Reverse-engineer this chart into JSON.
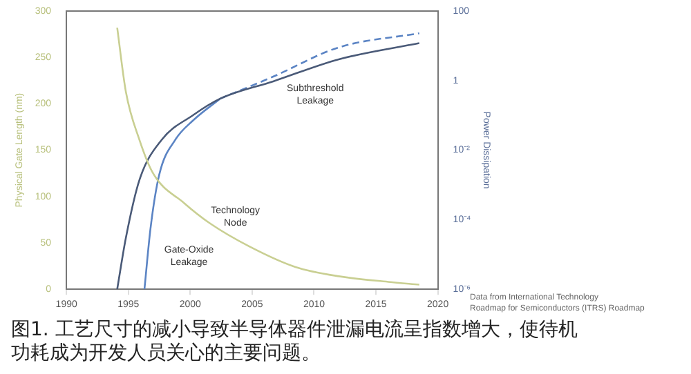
{
  "chart_data": {
    "type": "line",
    "ylabel": "Physical Gate Length (nm)",
    "y2label": "Power Dissipation",
    "xlim": [
      1990,
      2020
    ],
    "xticks": [
      1990,
      1995,
      2000,
      2005,
      2010,
      2015,
      2020
    ],
    "ylim": [
      0,
      300
    ],
    "yticks": [
      0,
      50,
      100,
      150,
      200,
      250,
      300
    ],
    "y2lim": [
      1e-06,
      100
    ],
    "y2ticks": [
      {
        "value": 1e-06,
        "label": "10⁻⁶"
      },
      {
        "value": 0.0001,
        "label": "10⁻⁴"
      },
      {
        "value": 0.01,
        "label": "10⁻²"
      },
      1,
      100
    ],
    "log": "y2",
    "grid": false,
    "legend": false,
    "marker": "none",
    "series": [
      {
        "color": "#c9cf92",
        "line_style": "solid",
        "x": [
          1994.1,
          1994.8,
          1995.9,
          1997,
          1999.5,
          2001.6,
          2004.8,
          2008.5,
          2012,
          2016,
          2018.5
        ],
        "values": [
          282,
          213,
          161,
          125,
          93,
          71,
          46,
          24,
          14,
          8,
          5
        ]
      },
      {
        "color": "#4a5a78",
        "line_style": "solid",
        "axis": "y2",
        "x": [
          1994.1,
          1994.8,
          1995.9,
          1997.7,
          2000.2,
          2002.4,
          2006.7,
          2012,
          2018.5
        ],
        "values": [
          1e-06,
          3e-05,
          0.0014,
          0.02,
          0.1,
          0.3,
          0.95,
          4.1,
          12
        ]
      },
      {
        "color": "#5b84c4",
        "line_style": "solid",
        "axis": "y2",
        "x": [
          1996.3,
          1996.8,
          1997.5,
          1998.8,
          2000.2,
          2002.4
        ],
        "values": [
          1e-06,
          6e-05,
          0.002,
          0.02,
          0.07,
          0.3
        ]
      },
      {
        "color": "#5b84c4",
        "line_style": "dashed",
        "axis": "y2",
        "x": [
          2002.4,
          2006.7,
          2012,
          2018.5
        ],
        "values": [
          0.3,
          1.3,
          9,
          23
        ]
      }
    ],
    "annotations": [
      "Subthreshold\nLeakage",
      "Technology\nNode",
      "Gate-Oxide\nLeakage",
      "Data from International Technology\nRoadmap for Semiconductors (ITRS) Roadmap",
      "图1. 工艺尺寸的减小导致半导体器件泄漏电流呈指数增大，使待机功耗成为开发人员关心的主要问题。"
    ]
  }
}
